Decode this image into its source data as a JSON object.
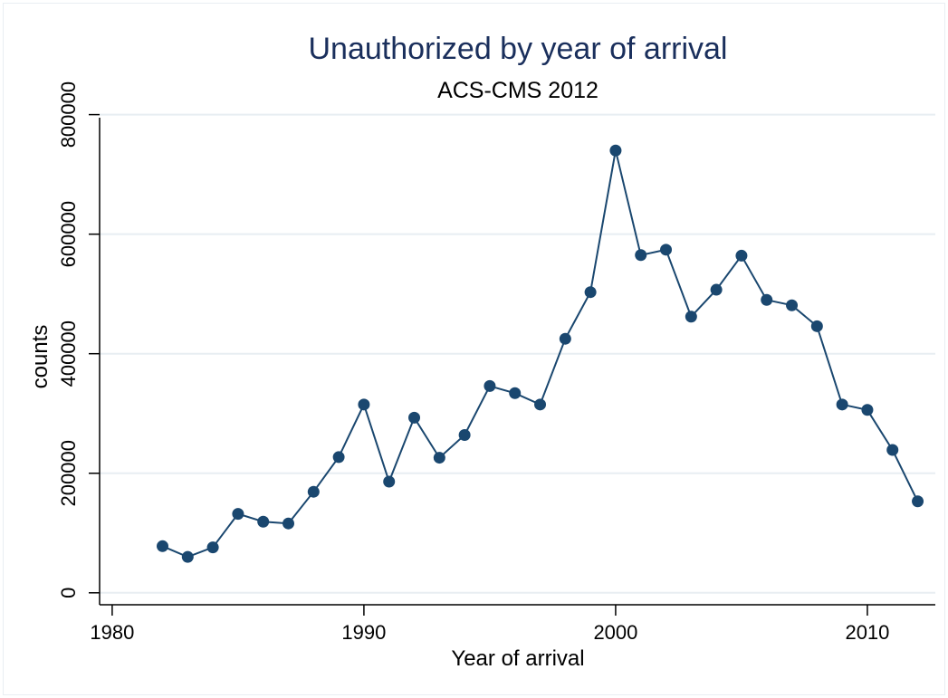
{
  "chart_data": {
    "type": "line",
    "title": "Unauthorized by year of arrival",
    "subtitle": "ACS-CMS 2012",
    "xlabel": "Year of arrival",
    "ylabel": "counts",
    "xlim": [
      1979.5,
      2012.7
    ],
    "ylim": [
      -20000,
      810000
    ],
    "xticks": [
      1980,
      1990,
      2000,
      2010
    ],
    "yticks": [
      0,
      200000,
      400000,
      600000,
      800000
    ],
    "grid": true,
    "legend": "none",
    "markers": true,
    "colors": {
      "series": "#1a476f",
      "grid": "#e8eef2",
      "title": "#1a2f5c"
    },
    "series": [
      {
        "x": [
          1982,
          1983,
          1984,
          1985,
          1986,
          1987,
          1988,
          1989,
          1990,
          1991,
          1992,
          1993,
          1994,
          1995,
          1996,
          1997,
          1998,
          1999,
          2000,
          2001,
          2002,
          2003,
          2004,
          2005,
          2006,
          2007,
          2008,
          2009,
          2010,
          2011,
          2012
        ],
        "y": [
          78000,
          60000,
          76000,
          132000,
          119000,
          116000,
          169000,
          227000,
          315000,
          186000,
          293000,
          226000,
          264000,
          346000,
          334000,
          315000,
          425000,
          503000,
          740000,
          565000,
          574000,
          462000,
          507000,
          564000,
          490000,
          481000,
          446000,
          315000,
          306000,
          239000,
          153000
        ]
      }
    ]
  }
}
